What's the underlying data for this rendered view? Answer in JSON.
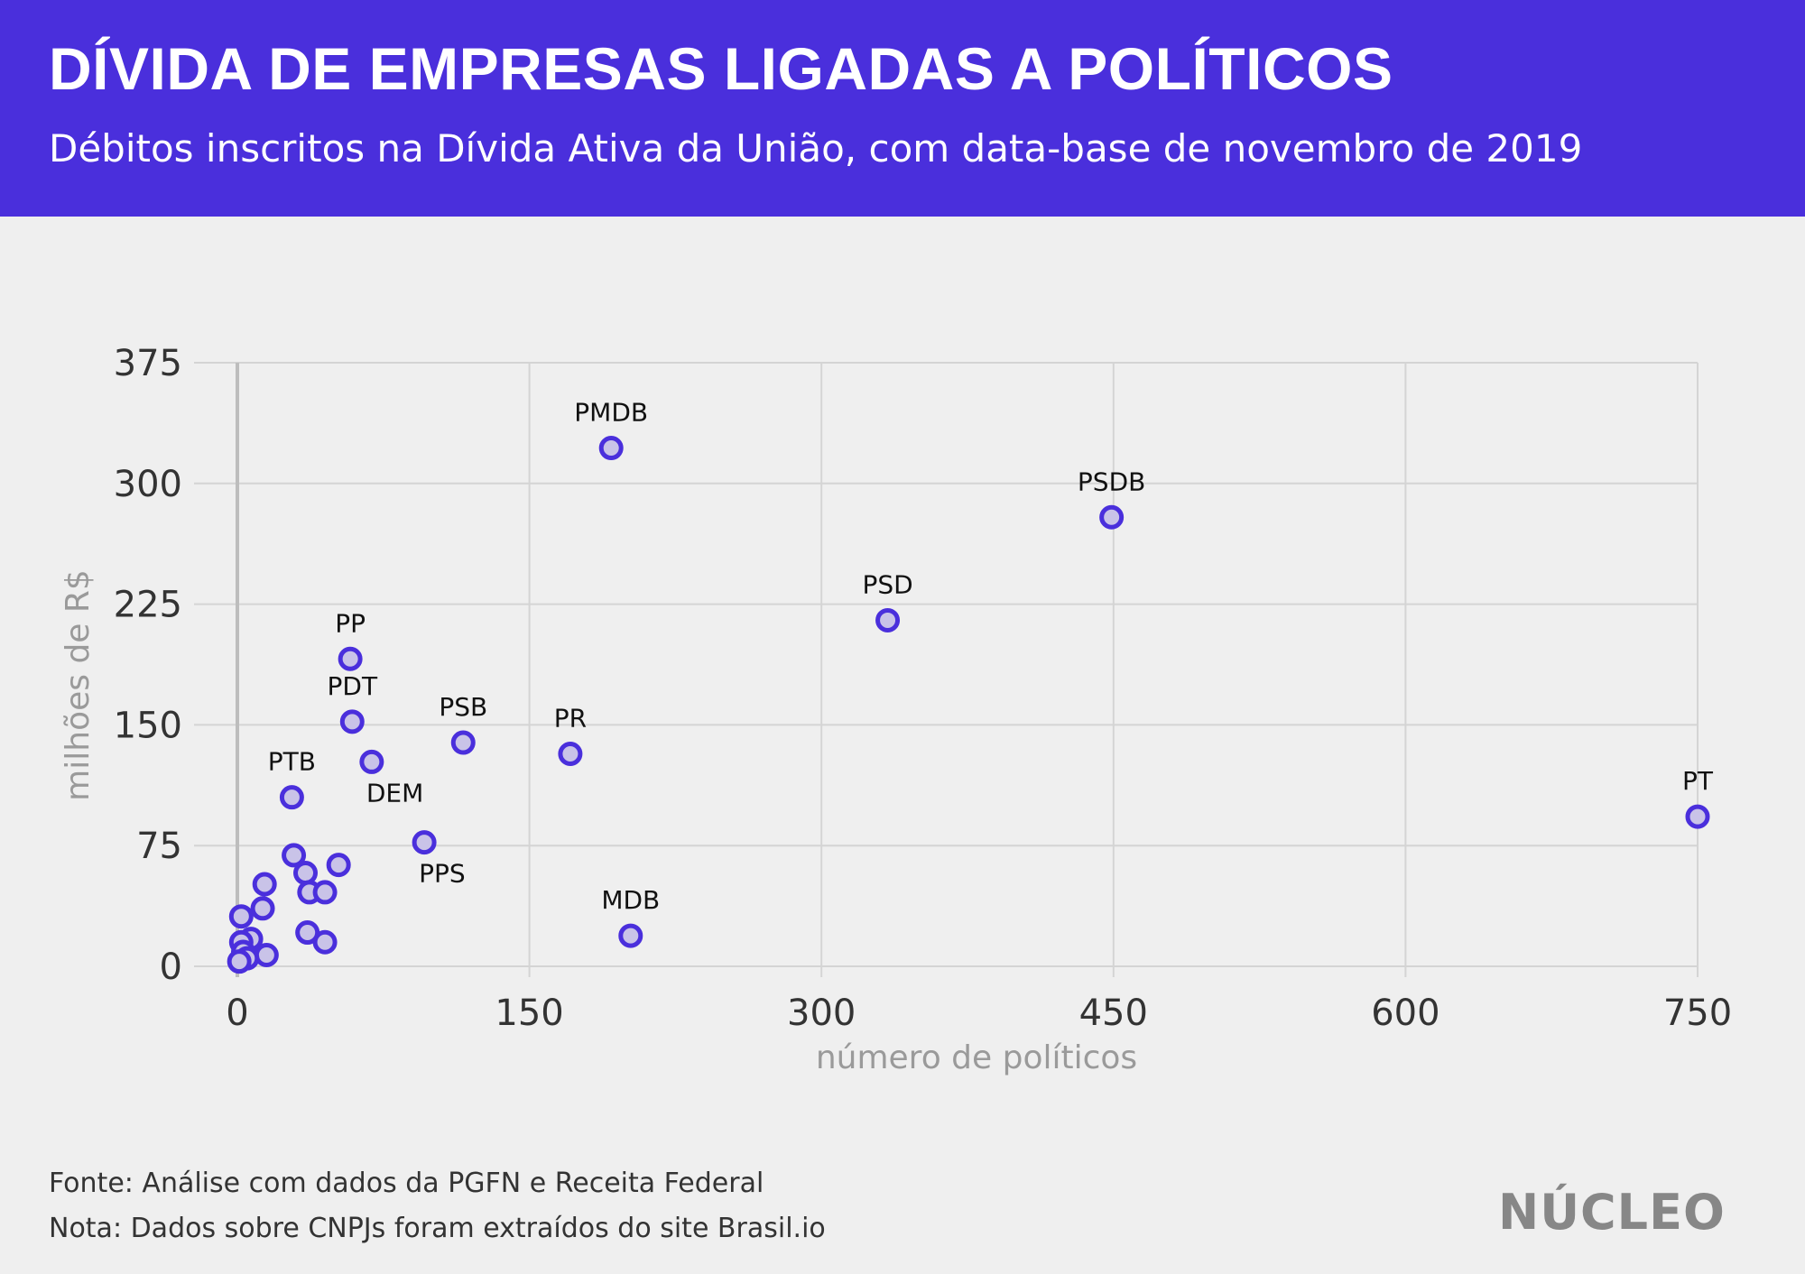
{
  "header": {
    "title": "DÍVIDA DE EMPRESAS LIGADAS A POLÍTICOS",
    "subtitle": "Débitos inscritos na Dívida Ativa da União, com data-base de novembro de 2019"
  },
  "colors": {
    "header_bg": "#4a2fdc",
    "point_stroke": "#4a2fdc",
    "point_fill": "#c9c3e8",
    "grid": "#d4d4d4",
    "axis_label": "#9a9a9a",
    "tick_label": "#333333",
    "background": "#efefef"
  },
  "chart_data": {
    "type": "scatter",
    "title": "",
    "xlabel": "número de políticos",
    "ylabel": "milhões de R$",
    "xlim": [
      0,
      750
    ],
    "ylim": [
      0,
      375
    ],
    "xticks": [
      0,
      150,
      300,
      450,
      600,
      750
    ],
    "yticks": [
      0,
      75,
      150,
      225,
      300,
      375
    ],
    "grid": true,
    "points": [
      {
        "label": "PMDB",
        "x": 192,
        "y": 322,
        "label_pos": "above"
      },
      {
        "label": "PSDB",
        "x": 449,
        "y": 279,
        "label_pos": "above"
      },
      {
        "label": "PSD",
        "x": 334,
        "y": 215,
        "label_pos": "above"
      },
      {
        "label": "PP",
        "x": 58,
        "y": 191,
        "label_pos": "above"
      },
      {
        "label": "PDT",
        "x": 59,
        "y": 152,
        "label_pos": "above"
      },
      {
        "label": "PSB",
        "x": 116,
        "y": 139,
        "label_pos": "above"
      },
      {
        "label": "PR",
        "x": 171,
        "y": 132,
        "label_pos": "above"
      },
      {
        "label": "DEM",
        "x": 69,
        "y": 127,
        "label_pos": "below-right"
      },
      {
        "label": "PTB",
        "x": 28,
        "y": 105,
        "label_pos": "above"
      },
      {
        "label": "PT",
        "x": 750,
        "y": 93,
        "label_pos": "above"
      },
      {
        "label": "PPS",
        "x": 96,
        "y": 77,
        "label_pos": "below-right"
      },
      {
        "label": "MDB",
        "x": 202,
        "y": 19,
        "label_pos": "above"
      },
      {
        "label": "",
        "x": 29,
        "y": 69
      },
      {
        "label": "",
        "x": 52,
        "y": 63
      },
      {
        "label": "",
        "x": 35,
        "y": 58
      },
      {
        "label": "",
        "x": 14,
        "y": 51
      },
      {
        "label": "",
        "x": 37,
        "y": 46
      },
      {
        "label": "",
        "x": 45,
        "y": 46
      },
      {
        "label": "",
        "x": 13,
        "y": 36
      },
      {
        "label": "",
        "x": 2,
        "y": 31
      },
      {
        "label": "",
        "x": 36,
        "y": 21
      },
      {
        "label": "",
        "x": 7,
        "y": 17
      },
      {
        "label": "",
        "x": 2,
        "y": 15
      },
      {
        "label": "",
        "x": 45,
        "y": 15
      },
      {
        "label": "",
        "x": 3,
        "y": 9
      },
      {
        "label": "",
        "x": 15,
        "y": 7
      },
      {
        "label": "",
        "x": 5,
        "y": 5
      },
      {
        "label": "",
        "x": 1,
        "y": 3
      }
    ]
  },
  "footer": {
    "source": "Fonte: Análise com dados da PGFN e Receita Federal",
    "note": "Nota: Dados sobre CNPJs foram extraídos do site Brasil.io"
  },
  "brand": {
    "logo_text": "NÚCLEO"
  }
}
